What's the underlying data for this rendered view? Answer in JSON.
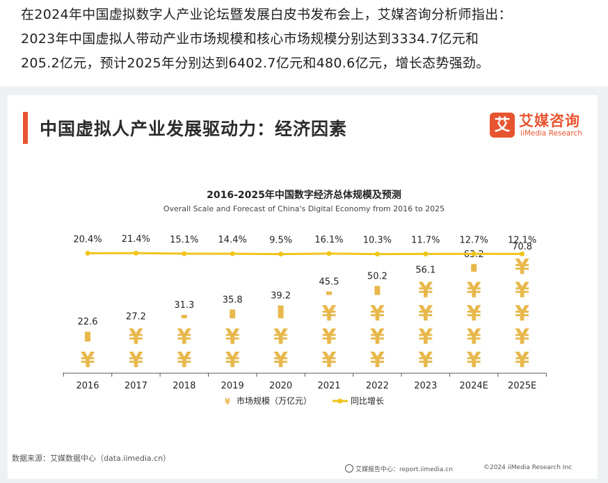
{
  "article": {
    "line1": "在2024年中国虚拟数字人产业论坛暨发展白皮书发布会上，艾媒咨询分析师指出：",
    "line2": "2023年中国虚拟人带动产业市场规模和核心市场规模分别达到3334.7亿元和",
    "line3": "205.2亿元，预计2025年分别达到6402.7亿元和480.6亿元，增长态势强劲。"
  },
  "card": {
    "title": "中国虚拟人产业发展驱动力：经济因素",
    "logo_mark": "艾",
    "logo_cn": "艾媒咨询",
    "logo_en": "iiMedia Research",
    "source": "数据来源：艾媒数据中心（data.iimedia.cn）",
    "footer_report": "艾媒报告中心：report.iimedia.cn",
    "footer_copy": "©2024 iiMedia Research Inc"
  },
  "colors": {
    "accent": "#e8542f",
    "bar_yuan": "#e8b84c",
    "growth_line": "#f0c419"
  },
  "chart_data": {
    "type": "bar",
    "title": "2016-2025年中国数字经济总体规模及预测",
    "subtitle": "Overall Scale and Forecast of China's Digital Economy from 2016 to 2025",
    "categories": [
      "2016",
      "2017",
      "2018",
      "2019",
      "2020",
      "2021",
      "2022",
      "2023",
      "2024E",
      "2025E"
    ],
    "series": [
      {
        "name": "市场规模（万亿元）",
        "type": "bar",
        "marker": "¥",
        "values": [
          22.6,
          27.2,
          31.3,
          35.8,
          39.2,
          45.5,
          50.2,
          56.1,
          63.2,
          70.8
        ],
        "labels": [
          "22.6",
          "27.2",
          "31.3",
          "35.8",
          "39.2",
          "45.5",
          "50.2",
          "56.1",
          "63.2",
          "70.8"
        ]
      },
      {
        "name": "同比增长",
        "type": "line",
        "values": [
          20.4,
          21.4,
          15.1,
          14.4,
          9.5,
          16.1,
          10.3,
          11.7,
          12.7,
          12.1
        ],
        "labels": [
          "20.4%",
          "21.4%",
          "15.1%",
          "14.4%",
          "9.5%",
          "16.1%",
          "10.3%",
          "11.7%",
          "12.7%",
          "12.1%"
        ]
      }
    ],
    "legend_position": "bottom",
    "grid": false
  }
}
